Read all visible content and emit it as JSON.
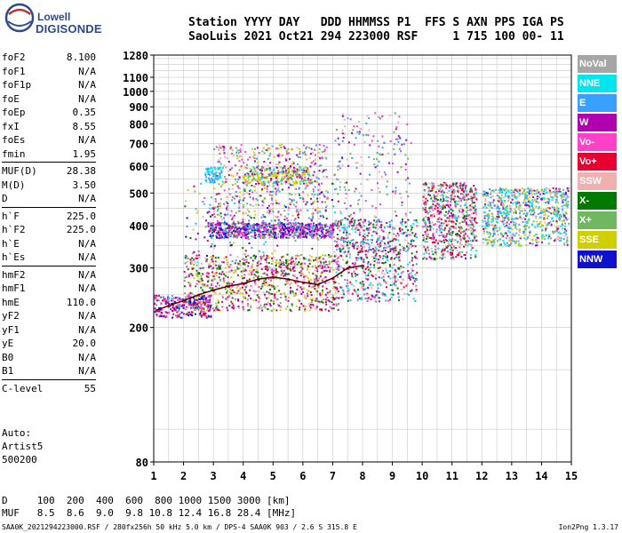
{
  "logo": {
    "line1": "Lowell",
    "line2": "DIGISONDE"
  },
  "header": {
    "line1": "Station YYYY DAY   DDD HHMMSS P1  FFS S AXN PPS IGA PS",
    "line2": "SaoLuis 2021 Oct21 294 223000 RSF     1 715 100 00- 11"
  },
  "params": [
    {
      "label": "foF2",
      "value": "8.100"
    },
    {
      "label": "foF1",
      "value": "N/A"
    },
    {
      "label": "foF1p",
      "value": "N/A"
    },
    {
      "label": "foE",
      "value": "N/A"
    },
    {
      "label": "foEp",
      "value": "0.35"
    },
    {
      "label": "fxI",
      "value": "8.55"
    },
    {
      "label": "foEs",
      "value": "N/A"
    },
    {
      "label": "fmin",
      "value": "1.95"
    },
    {
      "label": "MUF(D)",
      "value": "28.38"
    },
    {
      "label": "M(D)",
      "value": "3.50"
    },
    {
      "label": "D",
      "value": "N/A"
    },
    {
      "label": "h`F",
      "value": "225.0"
    },
    {
      "label": "h`F2",
      "value": "225.0"
    },
    {
      "label": "h`E",
      "value": "N/A"
    },
    {
      "label": "h`Es",
      "value": "N/A"
    },
    {
      "label": "hmF2",
      "value": "N/A"
    },
    {
      "label": "hmF1",
      "value": "N/A"
    },
    {
      "label": "hmE",
      "value": "110.0"
    },
    {
      "label": "yF2",
      "value": "N/A"
    },
    {
      "label": "yF1",
      "value": "N/A"
    },
    {
      "label": "yE",
      "value": "20.0"
    },
    {
      "label": "B0",
      "value": "N/A"
    },
    {
      "label": "B1",
      "value": "N/A"
    },
    {
      "label": "C-level",
      "value": "55"
    }
  ],
  "auto": [
    "Auto:",
    "Artist5",
    "500200"
  ],
  "bottom": {
    "d_line": "D     100  200  400  600  800 1000 1500 3000 [km]",
    "muf_line": "MUF   8.5  8.6  9.0  9.8 10.8 12.4 16.8 28.4 [MHz]"
  },
  "footer": {
    "left": "SAA0K_2021294223000.RSF / 280fx256h 50 kHz 5.0 km / DPS-4 SAA0K 903 / 2.6 S 315.8 E",
    "right": "Ion2Png 1.3.17"
  },
  "legend": [
    {
      "label": "NoVal",
      "color": "#a6a6a6"
    },
    {
      "label": "NNE",
      "color": "#00e5ee"
    },
    {
      "label": "E",
      "color": "#3aa0ff"
    },
    {
      "label": "W",
      "color": "#b000b0"
    },
    {
      "label": "Vo-",
      "color": "#ff40c8"
    },
    {
      "label": "Vo+",
      "color": "#e80030"
    },
    {
      "label": "SSW",
      "color": "#f0b0b0"
    },
    {
      "label": "X-",
      "color": "#007a00"
    },
    {
      "label": "X+",
      "color": "#70b860"
    },
    {
      "label": "SSE",
      "color": "#d0d000"
    },
    {
      "label": "NNW",
      "color": "#1010d0"
    }
  ],
  "chart_data": {
    "type": "scatter",
    "title": "",
    "xlabel": "",
    "ylabel": "",
    "xlim": [
      1,
      15
    ],
    "ylim": [
      80,
      1280
    ],
    "y_scale": "log",
    "grid": true,
    "x_ticks": [
      1,
      2,
      3,
      4,
      5,
      6,
      7,
      8,
      9,
      10,
      11,
      12,
      13,
      14,
      15
    ],
    "y_ticks": [
      80,
      200,
      300,
      400,
      500,
      600,
      700,
      800,
      900,
      1000,
      1100,
      1280
    ],
    "series": [
      {
        "name": "Vo+",
        "points": [
          [
            1.1,
            225
          ],
          [
            1.5,
            232
          ],
          [
            2.0,
            240
          ],
          [
            2.5,
            250
          ],
          [
            3.0,
            258
          ],
          [
            3.5,
            265
          ],
          [
            4.0,
            270
          ],
          [
            4.5,
            278
          ],
          [
            5.0,
            282
          ],
          [
            5.5,
            278
          ],
          [
            6.0,
            272
          ],
          [
            6.5,
            268
          ],
          [
            7.0,
            280
          ],
          [
            7.5,
            300
          ],
          [
            8.0,
            305
          ]
        ]
      },
      {
        "name": "W",
        "points": [
          [
            3.0,
            390
          ],
          [
            3.5,
            395
          ],
          [
            4.0,
            395
          ],
          [
            4.5,
            390
          ],
          [
            5.0,
            392
          ],
          [
            5.5,
            395
          ],
          [
            6.0,
            385
          ],
          [
            6.5,
            390
          ],
          [
            7.0,
            390
          ],
          [
            10.2,
            420
          ],
          [
            10.6,
            440
          ],
          [
            11.0,
            430
          ]
        ]
      },
      {
        "name": "NNE",
        "points": [
          [
            12.2,
            430
          ],
          [
            12.6,
            440
          ],
          [
            13.0,
            420
          ],
          [
            13.5,
            410
          ],
          [
            14.0,
            440
          ],
          [
            14.5,
            430
          ],
          [
            2.8,
            580
          ],
          [
            3.2,
            560
          ]
        ]
      },
      {
        "name": "SSE",
        "points": [
          [
            4.0,
            560
          ],
          [
            4.5,
            555
          ],
          [
            5.0,
            565
          ],
          [
            5.5,
            560
          ],
          [
            6.0,
            570
          ]
        ]
      },
      {
        "name": "NNW",
        "points": [
          [
            1.2,
            228
          ],
          [
            1.6,
            235
          ],
          [
            2.2,
            238
          ],
          [
            2.6,
            245
          ]
        ]
      },
      {
        "name": "X-",
        "points": [
          [
            2.5,
            290
          ],
          [
            3.2,
            300
          ],
          [
            4.0,
            310
          ],
          [
            9.2,
            300
          ],
          [
            10.4,
            320
          ]
        ]
      },
      {
        "name": "E",
        "points": [
          [
            12.4,
            380
          ],
          [
            12.9,
            395
          ],
          [
            13.4,
            385
          ],
          [
            8.0,
            360
          ],
          [
            8.5,
            365
          ]
        ]
      }
    ]
  }
}
